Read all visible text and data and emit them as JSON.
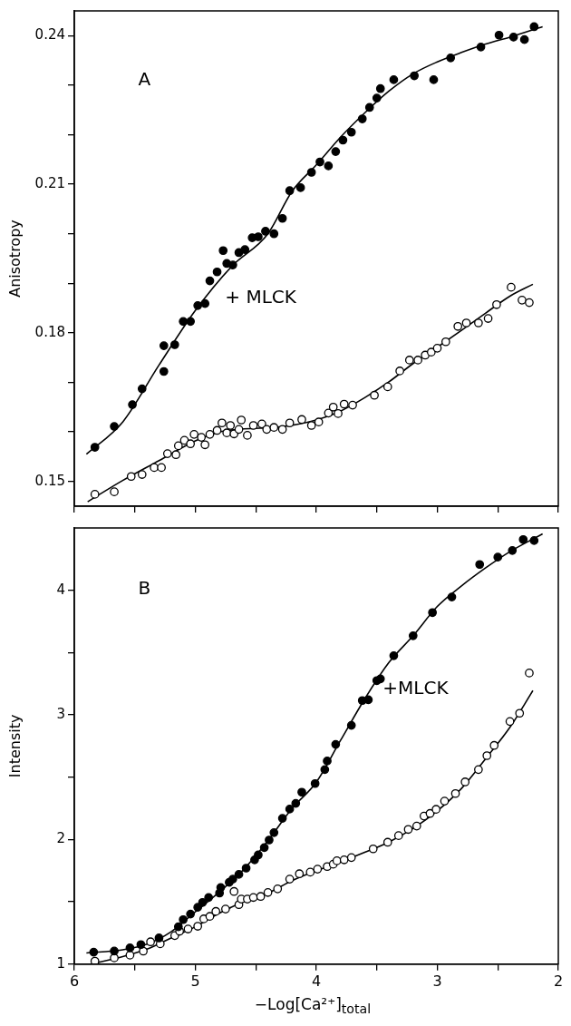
{
  "chart_data": [
    {
      "type": "scatter",
      "ylabel": "Anisotropy",
      "xlim": [
        6,
        2
      ],
      "ylim": [
        0.145,
        0.245
      ],
      "xticks": [
        6,
        {
          "value": 5.5,
          "label": null
        },
        5,
        {
          "value": 4.5,
          "label": null
        },
        4,
        {
          "value": 3.5,
          "label": null
        },
        3,
        {
          "value": 2.5,
          "label": null
        },
        2
      ],
      "yticks": [
        {
          "value": 0.15,
          "label": "0.15"
        },
        {
          "value": 0.16,
          "label": null
        },
        {
          "value": 0.17,
          "label": null
        },
        {
          "value": 0.18,
          "label": "0.18"
        },
        {
          "value": 0.19,
          "label": null
        },
        {
          "value": 0.2,
          "label": null
        },
        {
          "value": 0.21,
          "label": "0.21"
        },
        {
          "value": 0.22,
          "label": null
        },
        {
          "value": 0.23,
          "label": null
        },
        {
          "value": 0.24,
          "label": "0.24"
        }
      ],
      "tick_labels": "y",
      "grid": false,
      "legend": false,
      "annotations": [
        "A",
        "+ MLCK"
      ],
      "series": [
        {
          "marker": "circle",
          "color": "#000000",
          "x": [
            5.83,
            5.67,
            5.52,
            5.44,
            5.26,
            5.26,
            5.17,
            5.1,
            5.04,
            4.98,
            4.92,
            4.88,
            4.82,
            4.77,
            4.74,
            4.69,
            4.64,
            4.59,
            4.53,
            4.48,
            4.42,
            4.35,
            4.28,
            4.22,
            4.13,
            4.04,
            3.97,
            3.9,
            3.84,
            3.78,
            3.71,
            3.62,
            3.56,
            3.5,
            3.47,
            3.36,
            3.19,
            3.03,
            2.89,
            2.64,
            2.49,
            2.37,
            2.28,
            2.2
          ],
          "values": [
            0.1569,
            0.1611,
            0.1655,
            0.1687,
            0.1774,
            0.1722,
            0.1776,
            0.1823,
            0.1823,
            0.1855,
            0.1859,
            0.1905,
            0.1923,
            0.1966,
            0.194,
            0.1937,
            0.1962,
            0.1968,
            0.1992,
            0.1994,
            0.2005,
            0.2,
            0.2031,
            0.2087,
            0.2093,
            0.2124,
            0.2145,
            0.2137,
            0.2166,
            0.2189,
            0.2205,
            0.2232,
            0.2255,
            0.2274,
            0.2293,
            0.2311,
            0.2319,
            0.2311,
            0.2355,
            0.2377,
            0.2401,
            0.2397,
            0.2392,
            0.2418
          ]
        },
        {
          "marker": "circle",
          "color": "#ffffff",
          "x": [
            5.83,
            5.67,
            5.53,
            5.44,
            5.34,
            5.28,
            5.23,
            5.16,
            5.14,
            5.09,
            5.04,
            5.01,
            4.95,
            4.92,
            4.88,
            4.82,
            4.78,
            4.74,
            4.71,
            4.68,
            4.64,
            4.62,
            4.57,
            4.52,
            4.45,
            4.41,
            4.35,
            4.28,
            4.22,
            4.12,
            4.04,
            3.98,
            3.9,
            3.86,
            3.82,
            3.77,
            3.7,
            3.52,
            3.41,
            3.31,
            3.23,
            3.16,
            3.1,
            3.05,
            3.0,
            2.93,
            2.83,
            2.76,
            2.66,
            2.58,
            2.51,
            2.39,
            2.3,
            2.24
          ],
          "values": [
            0.1474,
            0.1479,
            0.151,
            0.1514,
            0.1528,
            0.1528,
            0.1556,
            0.1554,
            0.1572,
            0.1583,
            0.1576,
            0.1595,
            0.1589,
            0.1574,
            0.1595,
            0.1603,
            0.1618,
            0.1598,
            0.1613,
            0.1596,
            0.1605,
            0.1624,
            0.1593,
            0.1613,
            0.1616,
            0.1605,
            0.1609,
            0.1605,
            0.1618,
            0.1625,
            0.1613,
            0.162,
            0.1638,
            0.165,
            0.1637,
            0.1656,
            0.1654,
            0.1674,
            0.1691,
            0.1723,
            0.1745,
            0.1745,
            0.1755,
            0.1761,
            0.1769,
            0.1782,
            0.1813,
            0.182,
            0.182,
            0.1829,
            0.1857,
            0.1892,
            0.1866,
            0.1861
          ]
        },
        {
          "type": "line",
          "marker": "none",
          "line_style": "solid",
          "color": "#000000",
          "x": [
            5.9,
            5.6,
            5.3,
            5.0,
            4.7,
            4.4,
            4.2,
            4.0,
            3.8,
            3.6,
            3.4,
            3.2,
            3.0,
            2.8,
            2.6,
            2.4,
            2.13
          ],
          "values": [
            0.1555,
            0.162,
            0.1735,
            0.1845,
            0.1934,
            0.2,
            0.2086,
            0.2139,
            0.2195,
            0.2244,
            0.2288,
            0.2323,
            0.2347,
            0.2366,
            0.2383,
            0.2397,
            0.2418
          ]
        },
        {
          "type": "line",
          "marker": "none",
          "line_style": "solid",
          "color": "#000000",
          "x": [
            5.89,
            5.6,
            5.3,
            5.0,
            4.8,
            4.6,
            4.3,
            4.0,
            3.8,
            3.6,
            3.4,
            3.2,
            3.0,
            2.8,
            2.6,
            2.4,
            2.21
          ],
          "values": [
            0.1459,
            0.1502,
            0.1542,
            0.1582,
            0.16,
            0.1606,
            0.161,
            0.1624,
            0.1642,
            0.1669,
            0.1701,
            0.1738,
            0.1771,
            0.1805,
            0.184,
            0.1874,
            0.1898
          ]
        }
      ]
    },
    {
      "type": "scatter",
      "ylabel": "Intensity",
      "xlabel": "−Log[Ca²⁺]$_{total}$",
      "xlim": [
        6,
        2
      ],
      "ylim": [
        1,
        4.5
      ],
      "xticks": [
        6,
        {
          "value": 5.5,
          "label": null
        },
        5,
        {
          "value": 4.5,
          "label": null
        },
        4,
        {
          "value": 3.5,
          "label": null
        },
        3,
        {
          "value": 2.5,
          "label": null
        },
        2
      ],
      "yticks": [
        1,
        {
          "value": 1.5,
          "label": null
        },
        2,
        {
          "value": 2.5,
          "label": null
        },
        3,
        {
          "value": 3.5,
          "label": null
        },
        4
      ],
      "grid": false,
      "legend": false,
      "annotations": [
        "B",
        "+MLCK"
      ],
      "series": [
        {
          "marker": "circle",
          "color": "#000000",
          "x": [
            5.84,
            5.67,
            5.54,
            5.45,
            5.3,
            5.14,
            5.1,
            5.04,
            4.98,
            4.94,
            4.89,
            4.8,
            4.79,
            4.72,
            4.69,
            4.64,
            4.58,
            4.51,
            4.48,
            4.43,
            4.39,
            4.35,
            4.28,
            4.22,
            4.17,
            4.12,
            4.01,
            3.93,
            3.91,
            3.84,
            3.71,
            3.62,
            3.57,
            3.5,
            3.47,
            3.36,
            3.2,
            3.04,
            2.88,
            2.65,
            2.5,
            2.38,
            2.29,
            2.2
          ],
          "values": [
            1.096,
            1.105,
            1.13,
            1.157,
            1.21,
            1.3,
            1.357,
            1.402,
            1.456,
            1.495,
            1.535,
            1.57,
            1.615,
            1.656,
            1.682,
            1.72,
            1.77,
            1.837,
            1.876,
            1.935,
            1.996,
            2.055,
            2.17,
            2.244,
            2.29,
            2.38,
            2.449,
            2.561,
            2.63,
            2.763,
            2.916,
            3.115,
            3.121,
            3.275,
            3.289,
            3.475,
            3.635,
            3.821,
            3.946,
            4.207,
            4.266,
            4.319,
            4.407,
            4.399
          ]
        },
        {
          "marker": "circle",
          "color": "#ffffff",
          "x": [
            5.83,
            5.67,
            5.54,
            5.43,
            5.37,
            5.29,
            5.17,
            5.13,
            5.06,
            4.98,
            4.93,
            4.88,
            4.83,
            4.75,
            4.68,
            4.64,
            4.62,
            4.57,
            4.52,
            4.46,
            4.4,
            4.32,
            4.22,
            4.14,
            4.05,
            3.99,
            3.91,
            3.86,
            3.83,
            3.77,
            3.71,
            3.53,
            3.41,
            3.32,
            3.24,
            3.17,
            3.11,
            3.06,
            3.01,
            2.94,
            2.85,
            2.77,
            2.66,
            2.59,
            2.53,
            2.4,
            2.32,
            2.24
          ],
          "values": [
            1.024,
            1.05,
            1.072,
            1.104,
            1.179,
            1.163,
            1.229,
            1.264,
            1.282,
            1.304,
            1.363,
            1.383,
            1.423,
            1.442,
            1.583,
            1.477,
            1.522,
            1.522,
            1.535,
            1.543,
            1.575,
            1.604,
            1.682,
            1.725,
            1.738,
            1.762,
            1.783,
            1.802,
            1.829,
            1.837,
            1.855,
            1.925,
            1.978,
            2.031,
            2.081,
            2.108,
            2.188,
            2.209,
            2.242,
            2.308,
            2.369,
            2.462,
            2.561,
            2.673,
            2.755,
            2.947,
            3.013,
            3.336
          ]
        },
        {
          "type": "line",
          "marker": "none",
          "line_style": "solid",
          "color": "#000000",
          "x": [
            5.9,
            5.6,
            5.4,
            5.2,
            5.0,
            4.8,
            4.6,
            4.4,
            4.2,
            4.0,
            3.8,
            3.6,
            3.4,
            3.2,
            3.0,
            2.8,
            2.6,
            2.4,
            2.13
          ],
          "values": [
            1.09,
            1.115,
            1.16,
            1.26,
            1.42,
            1.58,
            1.76,
            1.99,
            2.25,
            2.46,
            2.795,
            3.128,
            3.42,
            3.635,
            3.87,
            4.035,
            4.18,
            4.31,
            4.453
          ]
        },
        {
          "type": "line",
          "marker": "none",
          "line_style": "solid",
          "color": "#000000",
          "x": [
            5.87,
            5.6,
            5.4,
            5.2,
            5.0,
            4.8,
            4.6,
            4.4,
            4.2,
            4.0,
            3.8,
            3.6,
            3.4,
            3.2,
            3.0,
            2.8,
            2.6,
            2.4,
            2.21
          ],
          "values": [
            1.0,
            1.06,
            1.12,
            1.21,
            1.3,
            1.41,
            1.5,
            1.57,
            1.67,
            1.75,
            1.82,
            1.897,
            1.98,
            2.09,
            2.23,
            2.41,
            2.65,
            2.9,
            3.195
          ]
        }
      ]
    }
  ]
}
